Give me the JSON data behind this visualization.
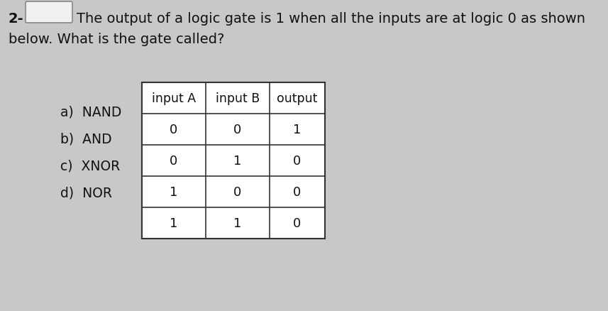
{
  "background_color": "#c8c8c8",
  "question_number": "2-",
  "question_text_line1": "The output of a logic gate is 1 when all the inputs are at logic 0 as shown",
  "question_text_line2": "below. What is the gate called?",
  "table_headers": [
    "input A",
    "input B",
    "output"
  ],
  "table_data": [
    [
      "0",
      "0",
      "1"
    ],
    [
      "0",
      "1",
      "0"
    ],
    [
      "1",
      "0",
      "0"
    ],
    [
      "1",
      "1",
      "0"
    ]
  ],
  "options": [
    "a)  NAND",
    "b)  AND",
    "c)  XNOR",
    "d)  NOR"
  ],
  "text_color": "#111111",
  "background_color_box": "#e0e0e0",
  "question_fontsize": 14,
  "header_fontsize": 12.5,
  "data_fontsize": 13,
  "option_fontsize": 13.5
}
